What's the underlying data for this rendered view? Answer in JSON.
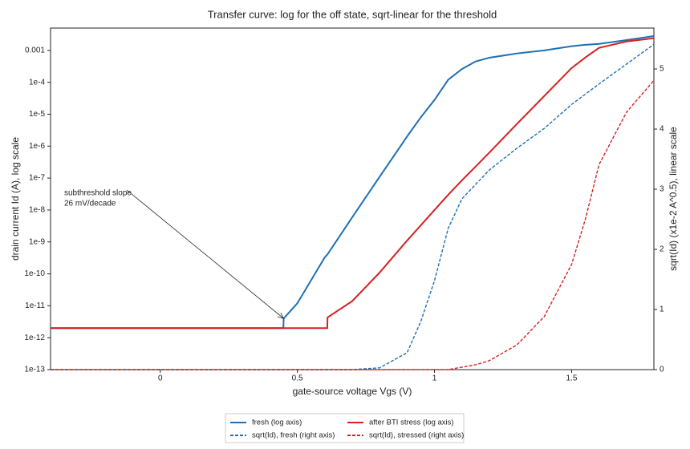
{
  "chart_data": {
    "type": "line",
    "title": "Transfer curve: log for the off state, sqrt-linear for the threshold",
    "x_label": "gate-source voltage Vgs (V)",
    "y_label": "drain current Id (A), log scale",
    "y2_label": "sqrt(Id)  (x1e-2 A^0.5), linear scale",
    "yscale": "log",
    "xlim": [
      -0.4,
      1.8
    ],
    "xticks": [
      0,
      0.5,
      1,
      1.5
    ],
    "ylim": [
      1e-13,
      0.005
    ],
    "yticks": [
      {
        "value": 1e-13,
        "label": "1e-13"
      },
      {
        "value": 1e-12,
        "label": "1e-12"
      },
      {
        "value": 1e-11,
        "label": "1e-11"
      },
      {
        "value": 1e-10,
        "label": "1e-10"
      },
      {
        "value": 1e-09,
        "label": "1e-9"
      },
      {
        "value": 1e-08,
        "label": "1e-8"
      },
      {
        "value": 1e-07,
        "label": "1e-7"
      },
      {
        "value": 1e-06,
        "label": "1e-6"
      },
      {
        "value": 1e-05,
        "label": "1e-5"
      },
      {
        "value": 0.0001,
        "label": "1e-4"
      },
      0.001
    ],
    "y2lim": [
      0,
      5.68
    ],
    "y2ticks": [
      0,
      1,
      2,
      3,
      4,
      5
    ],
    "grid": false,
    "legend": "bottom",
    "annotation": {
      "lines": [
        "subthreshold slope",
        "26 mV/decade"
      ]
    },
    "x": [
      -0.4,
      0.449,
      0.45,
      0.5,
      0.6,
      0.609,
      0.61,
      0.7,
      0.8,
      0.9,
      0.95,
      1.0,
      1.05,
      1.1,
      1.15,
      1.2,
      1.3,
      1.4,
      1.5,
      1.55,
      1.6,
      1.7,
      1.8
    ],
    "series": [
      {
        "name": "fresh (log axis)",
        "color": "#1f6fb4",
        "linestyle": "solid",
        "values": [
          2e-12,
          2e-12,
          4e-12,
          1.2e-11,
          3.3e-10,
          4e-10,
          4.1e-10,
          5.9e-09,
          1.1e-07,
          2e-06,
          8e-06,
          2.8e-05,
          0.00012,
          0.00026,
          0.00045,
          0.00059,
          0.0008,
          0.001,
          0.00135,
          0.0015,
          0.0016,
          0.0021,
          0.0028
        ]
      },
      {
        "name": "after BTI stress (log axis)",
        "color": "#d62020",
        "linestyle": "solid",
        "values": [
          2e-12,
          2e-12,
          2e-12,
          2e-12,
          2e-12,
          2e-12,
          4.3e-12,
          1.4e-11,
          1.1e-10,
          1.1e-09,
          3.3e-09,
          1e-08,
          3e-08,
          8.5e-08,
          2.3e-07,
          6.3e-07,
          4.9e-06,
          3.7e-05,
          0.00028,
          0.0006,
          0.0012,
          0.0019,
          0.0024
        ]
      },
      {
        "name": "sqrt(Id), fresh (right axis)",
        "color": "#1f6fb4",
        "linestyle": "dashed",
        "axis": "y2",
        "values": [
          0,
          0,
          0,
          0,
          0,
          0,
          0,
          0,
          0.03,
          0.28,
          0.8,
          1.48,
          2.35,
          2.84,
          3.08,
          3.32,
          3.68,
          4.01,
          4.41,
          4.58,
          4.75,
          5.08,
          5.41
        ]
      },
      {
        "name": "sqrt(Id), stressed (right axis)",
        "color": "#d62020",
        "linestyle": "dashed",
        "axis": "y2",
        "values": [
          0,
          0,
          0,
          0,
          0,
          0,
          0,
          0,
          0,
          0,
          0,
          0,
          0,
          0.04,
          0.08,
          0.15,
          0.41,
          0.88,
          1.75,
          2.5,
          3.41,
          4.28,
          4.81
        ]
      }
    ]
  }
}
